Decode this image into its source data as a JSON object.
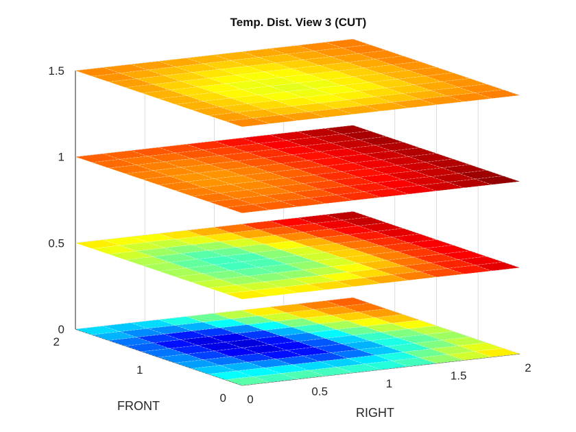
{
  "chart_data": {
    "type": "heatmap",
    "subtype": "3d-slice-planes",
    "title": "Temp. Dist. View 3 (CUT)",
    "xlabel": "RIGHT",
    "ylabel": "FRONT",
    "zlabel": "",
    "xlim": [
      0,
      2
    ],
    "ylim": [
      0,
      2
    ],
    "zlim": [
      0,
      1.5
    ],
    "x_ticks": [
      "0",
      "0.5",
      "1",
      "1.5",
      "2"
    ],
    "y_ticks": [
      "0",
      "1",
      "2"
    ],
    "z_ticks": [
      "0",
      "0.5",
      "1",
      "1.5"
    ],
    "grid": true,
    "colormap": "jet",
    "color_range": [
      0,
      1
    ],
    "grid_size": 10,
    "slices": [
      {
        "z": 0,
        "values": [
          [
            0.46,
            0.44,
            0.45,
            0.44,
            0.42,
            0.41,
            0.44,
            0.52,
            0.58,
            0.64
          ],
          [
            0.38,
            0.37,
            0.36,
            0.34,
            0.33,
            0.35,
            0.4,
            0.48,
            0.55,
            0.6
          ],
          [
            0.32,
            0.3,
            0.26,
            0.22,
            0.2,
            0.24,
            0.32,
            0.42,
            0.5,
            0.56
          ],
          [
            0.28,
            0.24,
            0.18,
            0.14,
            0.14,
            0.2,
            0.3,
            0.4,
            0.47,
            0.53
          ],
          [
            0.26,
            0.19,
            0.12,
            0.1,
            0.13,
            0.21,
            0.33,
            0.43,
            0.5,
            0.56
          ],
          [
            0.24,
            0.16,
            0.1,
            0.09,
            0.14,
            0.25,
            0.37,
            0.48,
            0.56,
            0.62
          ],
          [
            0.22,
            0.14,
            0.1,
            0.11,
            0.18,
            0.3,
            0.43,
            0.54,
            0.62,
            0.68
          ],
          [
            0.24,
            0.18,
            0.15,
            0.18,
            0.26,
            0.38,
            0.5,
            0.6,
            0.67,
            0.72
          ],
          [
            0.3,
            0.26,
            0.26,
            0.3,
            0.38,
            0.48,
            0.58,
            0.66,
            0.72,
            0.76
          ],
          [
            0.34,
            0.32,
            0.34,
            0.4,
            0.48,
            0.56,
            0.64,
            0.7,
            0.75,
            0.78
          ]
        ]
      },
      {
        "z": 0.5,
        "values": [
          [
            0.64,
            0.63,
            0.64,
            0.66,
            0.68,
            0.71,
            0.75,
            0.8,
            0.85,
            0.9
          ],
          [
            0.6,
            0.58,
            0.57,
            0.59,
            0.62,
            0.66,
            0.72,
            0.78,
            0.84,
            0.89
          ],
          [
            0.57,
            0.53,
            0.51,
            0.52,
            0.56,
            0.62,
            0.69,
            0.76,
            0.83,
            0.88
          ],
          [
            0.55,
            0.5,
            0.47,
            0.47,
            0.52,
            0.59,
            0.67,
            0.75,
            0.82,
            0.88
          ],
          [
            0.54,
            0.48,
            0.44,
            0.45,
            0.5,
            0.58,
            0.67,
            0.75,
            0.82,
            0.88
          ],
          [
            0.54,
            0.47,
            0.44,
            0.45,
            0.51,
            0.59,
            0.68,
            0.76,
            0.83,
            0.89
          ],
          [
            0.55,
            0.49,
            0.46,
            0.48,
            0.54,
            0.62,
            0.7,
            0.78,
            0.85,
            0.9
          ],
          [
            0.58,
            0.53,
            0.51,
            0.53,
            0.59,
            0.66,
            0.74,
            0.81,
            0.87,
            0.91
          ],
          [
            0.61,
            0.58,
            0.57,
            0.6,
            0.65,
            0.71,
            0.78,
            0.84,
            0.89,
            0.93
          ],
          [
            0.64,
            0.62,
            0.62,
            0.65,
            0.7,
            0.76,
            0.82,
            0.87,
            0.91,
            0.94
          ]
        ]
      },
      {
        "z": 1,
        "values": [
          [
            0.78,
            0.78,
            0.79,
            0.81,
            0.83,
            0.86,
            0.89,
            0.92,
            0.95,
            0.98
          ],
          [
            0.77,
            0.76,
            0.77,
            0.79,
            0.82,
            0.85,
            0.88,
            0.91,
            0.94,
            0.97
          ],
          [
            0.76,
            0.75,
            0.75,
            0.77,
            0.8,
            0.84,
            0.87,
            0.9,
            0.93,
            0.96
          ],
          [
            0.75,
            0.74,
            0.74,
            0.76,
            0.79,
            0.83,
            0.86,
            0.89,
            0.92,
            0.95
          ],
          [
            0.75,
            0.73,
            0.73,
            0.75,
            0.78,
            0.82,
            0.86,
            0.89,
            0.92,
            0.95
          ],
          [
            0.75,
            0.73,
            0.73,
            0.75,
            0.78,
            0.82,
            0.86,
            0.89,
            0.92,
            0.95
          ],
          [
            0.75,
            0.74,
            0.74,
            0.76,
            0.79,
            0.83,
            0.86,
            0.89,
            0.92,
            0.95
          ],
          [
            0.76,
            0.75,
            0.75,
            0.77,
            0.8,
            0.83,
            0.87,
            0.9,
            0.93,
            0.96
          ],
          [
            0.77,
            0.76,
            0.77,
            0.79,
            0.81,
            0.84,
            0.88,
            0.91,
            0.93,
            0.96
          ],
          [
            0.78,
            0.78,
            0.79,
            0.8,
            0.83,
            0.86,
            0.89,
            0.91,
            0.94,
            0.96
          ]
        ]
      },
      {
        "z": 1.5,
        "values": [
          [
            0.74,
            0.73,
            0.72,
            0.71,
            0.71,
            0.71,
            0.72,
            0.73,
            0.74,
            0.75
          ],
          [
            0.72,
            0.7,
            0.68,
            0.67,
            0.66,
            0.67,
            0.68,
            0.7,
            0.72,
            0.74
          ],
          [
            0.71,
            0.68,
            0.66,
            0.64,
            0.63,
            0.64,
            0.66,
            0.68,
            0.71,
            0.73
          ],
          [
            0.7,
            0.67,
            0.64,
            0.62,
            0.61,
            0.62,
            0.64,
            0.67,
            0.7,
            0.73
          ],
          [
            0.7,
            0.66,
            0.63,
            0.61,
            0.6,
            0.61,
            0.64,
            0.67,
            0.7,
            0.73
          ],
          [
            0.7,
            0.66,
            0.63,
            0.61,
            0.61,
            0.62,
            0.64,
            0.67,
            0.7,
            0.73
          ],
          [
            0.71,
            0.67,
            0.65,
            0.63,
            0.62,
            0.63,
            0.66,
            0.68,
            0.71,
            0.74
          ],
          [
            0.72,
            0.69,
            0.67,
            0.65,
            0.64,
            0.65,
            0.67,
            0.7,
            0.72,
            0.74
          ],
          [
            0.73,
            0.71,
            0.69,
            0.68,
            0.67,
            0.68,
            0.69,
            0.71,
            0.73,
            0.75
          ],
          [
            0.74,
            0.73,
            0.72,
            0.71,
            0.7,
            0.7,
            0.71,
            0.72,
            0.74,
            0.75
          ]
        ]
      }
    ]
  }
}
